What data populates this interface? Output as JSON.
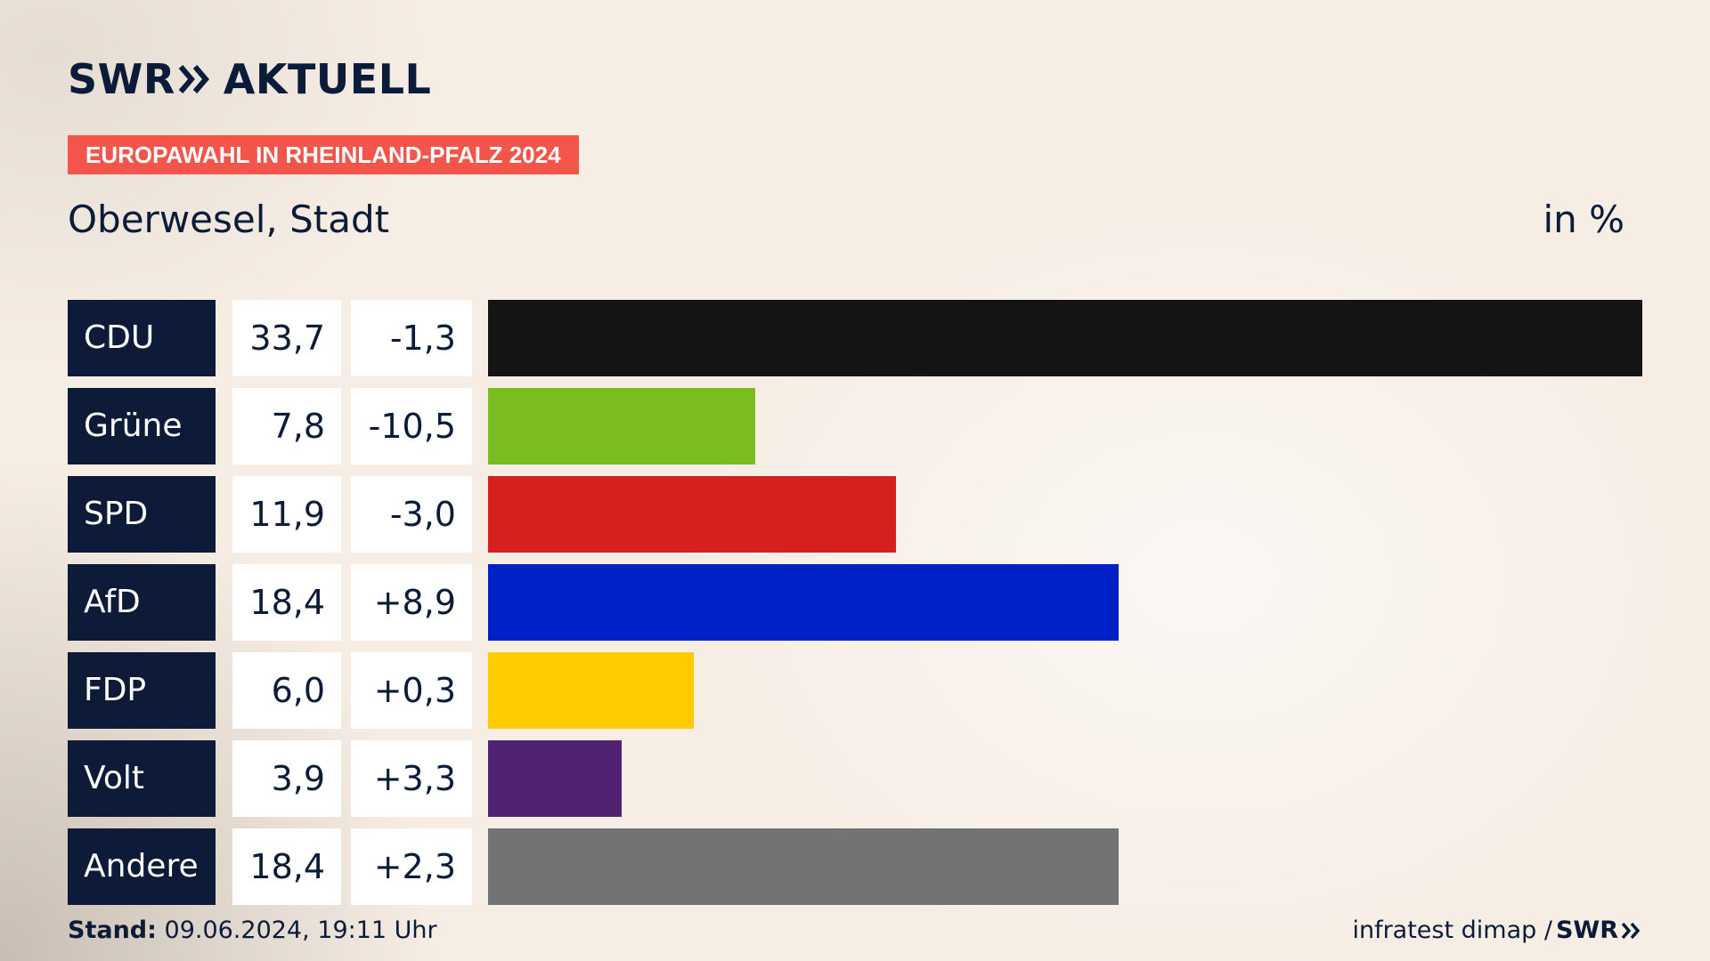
{
  "header": {
    "brand_left": "SWR",
    "brand_right": "AKTUELL",
    "tag": "EUROPAWAHL IN RHEINLAND-PFALZ 2024",
    "region": "Oberwesel, Stadt",
    "unit": "in %"
  },
  "chart_data": {
    "type": "bar",
    "orientation": "horizontal",
    "categories": [
      "CDU",
      "Grüne",
      "SPD",
      "AfD",
      "FDP",
      "Volt",
      "Andere"
    ],
    "values": [
      33.7,
      7.8,
      11.9,
      18.4,
      6.0,
      3.9,
      18.4
    ],
    "value_labels": [
      "33,7",
      "7,8",
      "11,9",
      "18,4",
      "6,0",
      "3,9",
      "18,4"
    ],
    "diffs": [
      -1.3,
      -10.5,
      -3.0,
      8.9,
      0.3,
      3.3,
      2.3
    ],
    "diff_labels": [
      "-1,3",
      "-10,5",
      "-3,0",
      "+8,9",
      "+0,3",
      "+3,3",
      "+2,3"
    ],
    "colors": [
      "#141414",
      "#7bbd1e",
      "#d71f1f",
      "#0021c8",
      "#ffcc00",
      "#4f2272",
      "#727374"
    ],
    "xlim": [
      0,
      33.7
    ],
    "grid": false,
    "legend": "none"
  },
  "footer": {
    "stand_label": "Stand:",
    "stand_value": "09.06.2024, 19:11 Uhr",
    "source": "infratest dimap /",
    "source_brand": "SWR"
  }
}
